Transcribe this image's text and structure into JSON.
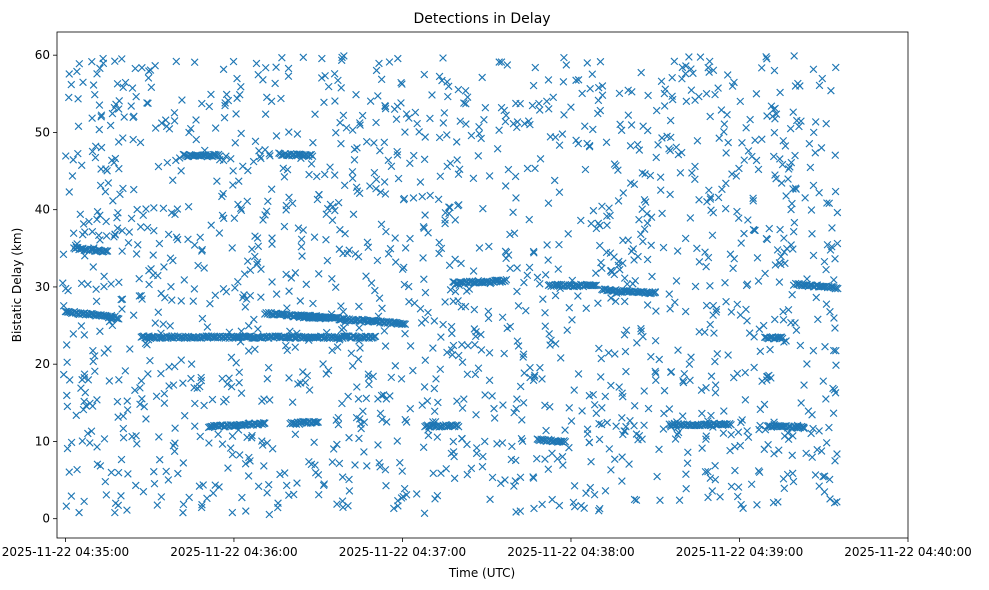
{
  "chart_data": {
    "type": "scatter",
    "title": "Detections in Delay",
    "xlabel": "Time (UTC)",
    "ylabel": "Bistatic Delay (km)",
    "marker": "x",
    "color": "#1f77b4",
    "grid": false,
    "xlim": [
      "2025-11-22 04:34:57",
      "2025-11-22 04:40:00"
    ],
    "ylim": [
      -2.5,
      63
    ],
    "x_ticks": [
      "2025-11-22 04:35:00",
      "2025-11-22 04:36:00",
      "2025-11-22 04:37:00",
      "2025-11-22 04:38:00",
      "2025-11-22 04:39:00",
      "2025-11-22 04:40:00"
    ],
    "y_ticks": [
      0,
      10,
      20,
      30,
      40,
      50,
      60
    ],
    "tracks": [
      {
        "x_start": "2025-11-22 04:35:00",
        "x_end": "2025-11-22 04:35:19",
        "y_start": 26.8,
        "y_end": 26.0
      },
      {
        "x_start": "2025-11-22 04:35:27",
        "x_end": "2025-11-22 04:36:50",
        "y_start": 23.5,
        "y_end": 23.5
      },
      {
        "x_start": "2025-11-22 04:36:23",
        "x_end": "2025-11-22 04:37:01",
        "y_start": 26.3,
        "y_end": 25.2
      },
      {
        "x_start": "2025-11-22 04:36:11",
        "x_end": "2025-11-22 04:36:33",
        "y_start": 26.6,
        "y_end": 25.9
      },
      {
        "x_start": "2025-11-22 04:35:51",
        "x_end": "2025-11-22 04:36:11",
        "y_start": 11.9,
        "y_end": 12.3
      },
      {
        "x_start": "2025-11-22 04:36:20",
        "x_end": "2025-11-22 04:36:30",
        "y_start": 12.3,
        "y_end": 12.6
      },
      {
        "x_start": "2025-11-22 04:37:08",
        "x_end": "2025-11-22 04:37:20",
        "y_start": 12.0,
        "y_end": 12.0
      },
      {
        "x_start": "2025-11-22 04:38:35",
        "x_end": "2025-11-22 04:38:57",
        "y_start": 12.2,
        "y_end": 12.2
      },
      {
        "x_start": "2025-11-22 04:39:10",
        "x_end": "2025-11-22 04:39:23",
        "y_start": 12.0,
        "y_end": 11.8
      },
      {
        "x_start": "2025-11-22 04:37:52",
        "x_end": "2025-11-22 04:38:09",
        "y_start": 30.2,
        "y_end": 30.2
      },
      {
        "x_start": "2025-11-22 04:38:11",
        "x_end": "2025-11-22 04:38:30",
        "y_start": 29.6,
        "y_end": 29.2
      },
      {
        "x_start": "2025-11-22 04:37:18",
        "x_end": "2025-11-22 04:37:37",
        "y_start": 30.5,
        "y_end": 30.8
      },
      {
        "x_start": "2025-11-22 04:39:20",
        "x_end": "2025-11-22 04:39:35",
        "y_start": 30.3,
        "y_end": 29.9
      },
      {
        "x_start": "2025-11-22 04:35:03",
        "x_end": "2025-11-22 04:35:15",
        "y_start": 35.0,
        "y_end": 34.6
      },
      {
        "x_start": "2025-11-22 04:35:42",
        "x_end": "2025-11-22 04:35:55",
        "y_start": 47.0,
        "y_end": 47.0
      },
      {
        "x_start": "2025-11-22 04:36:16",
        "x_end": "2025-11-22 04:36:28",
        "y_start": 47.2,
        "y_end": 47.0
      },
      {
        "x_start": "2025-11-22 04:37:48",
        "x_end": "2025-11-22 04:37:58",
        "y_start": 10.2,
        "y_end": 10.0
      },
      {
        "x_start": "2025-11-22 04:39:09",
        "x_end": "2025-11-22 04:39:15",
        "y_start": 23.4,
        "y_end": 23.4
      }
    ]
  }
}
